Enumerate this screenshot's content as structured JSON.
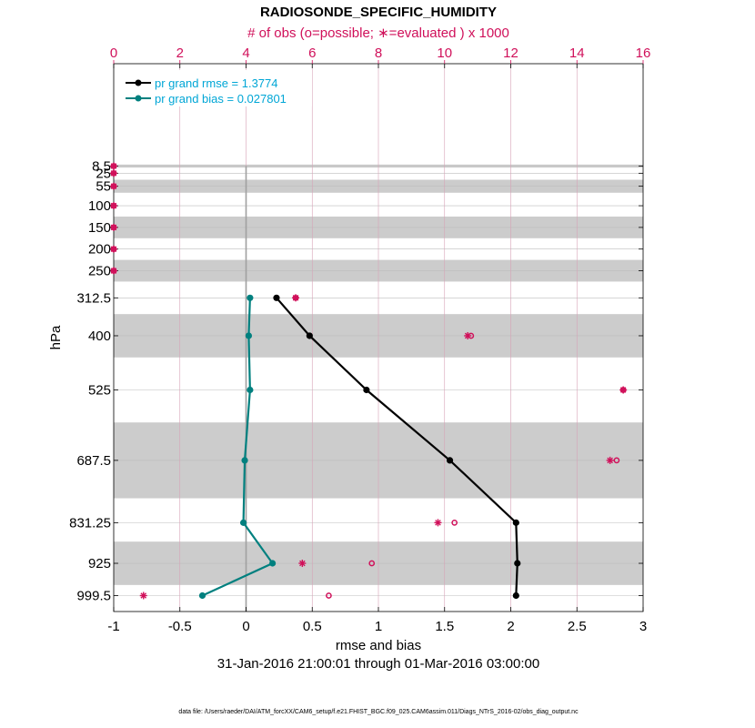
{
  "chart_data": {
    "type": "line",
    "title": "RADIOSONDE_SPECIFIC_HUMIDITY",
    "top_axis_label": "# of obs (o=possible; ∗=evaluated ) x 1000",
    "xlabel": "rmse and bias",
    "ylabel": "hPa",
    "date_range": "31-Jan-2016 21:00:01 through 01-Mar-2016 03:00:00",
    "footnote": "data file: /Users/raeder/DAI/ATM_forcXX/CAM6_setup/f.e21.FHIST_BGC.f09_025.CAM6assim.011/Diags_NTrS_2016-02/obs_diag_output.nc",
    "xlim": [
      -1,
      3
    ],
    "xticks": [
      -1,
      -0.5,
      0,
      0.5,
      1,
      1.5,
      2,
      2.5,
      3
    ],
    "xtick_labels": [
      "-1",
      "-0.5",
      "0",
      "0.5",
      "1",
      "1.5",
      "2",
      "2.5",
      "3"
    ],
    "top_xlim": [
      0,
      16
    ],
    "top_xticks": [
      0,
      2,
      4,
      6,
      8,
      10,
      12,
      14,
      16
    ],
    "top_xtick_labels": [
      "0",
      "2",
      "4",
      "6",
      "8",
      "10",
      "12",
      "14",
      "16"
    ],
    "levels": [
      8.5,
      25,
      55,
      100,
      150,
      200,
      250,
      312.5,
      400,
      525,
      687.5,
      831.25,
      925,
      999.5
    ],
    "level_labels": [
      "8.5",
      "25",
      "55",
      "100",
      "150",
      "200",
      "250",
      "312.5",
      "400",
      "525",
      "687.5",
      "831.25",
      "925",
      "999.5"
    ],
    "shaded_bands": [
      [
        5,
        12
      ],
      [
        40,
        70
      ],
      [
        125,
        175
      ],
      [
        225,
        275
      ],
      [
        350,
        450
      ],
      [
        600,
        775
      ],
      [
        875,
        975
      ]
    ],
    "series": [
      {
        "name": "rmse",
        "legend": "pr grand rmse = 1.3774",
        "color": "#000000",
        "levels": [
          312.5,
          400,
          525,
          687.5,
          831.25,
          925,
          999.5
        ],
        "values": [
          0.23,
          0.48,
          0.91,
          1.54,
          2.04,
          2.05,
          2.04
        ]
      },
      {
        "name": "bias",
        "legend": "pr grand bias = 0.027801",
        "color": "#00807f",
        "levels": [
          312.5,
          400,
          525,
          687.5,
          831.25,
          925,
          999.5
        ],
        "values": [
          0.03,
          0.02,
          0.03,
          -0.01,
          -0.02,
          0.2,
          -0.33
        ]
      }
    ],
    "obs_possible": {
      "levels": [
        8.5,
        25,
        55,
        100,
        150,
        200,
        250,
        312.5,
        400,
        525,
        687.5,
        831.25,
        925,
        999.5
      ],
      "values": [
        0,
        0,
        0,
        0,
        0,
        0,
        0,
        5.5,
        10.8,
        15.4,
        15.2,
        10.3,
        7.8,
        6.5
      ]
    },
    "obs_evaluated": {
      "levels": [
        8.5,
        25,
        55,
        100,
        150,
        200,
        250,
        312.5,
        400,
        525,
        687.5,
        831.25,
        925,
        999.5
      ],
      "values": [
        0,
        0,
        0,
        0,
        0,
        0,
        0,
        5.5,
        10.7,
        15.4,
        15.0,
        9.8,
        5.7,
        0.9
      ]
    }
  }
}
